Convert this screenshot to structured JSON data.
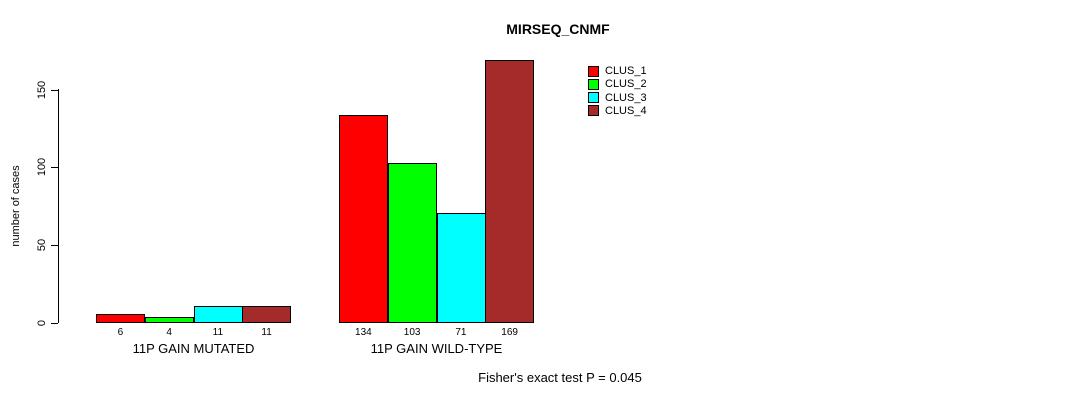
{
  "chart_data": {
    "type": "bar",
    "title": "MIRSEQ_CNMF",
    "ylabel": "number of cases",
    "yticks": [
      0,
      50,
      100,
      150
    ],
    "ylim": [
      0,
      169
    ],
    "grid": false,
    "legend_position": "top-right",
    "categories": [
      "11P GAIN MUTATED",
      "11P GAIN WILD-TYPE"
    ],
    "series": [
      {
        "name": "CLUS_1",
        "color": "#ff0000",
        "values": [
          6,
          134
        ]
      },
      {
        "name": "CLUS_2",
        "color": "#00ff00",
        "values": [
          4,
          103
        ]
      },
      {
        "name": "CLUS_3",
        "color": "#00ffff",
        "values": [
          11,
          71
        ]
      },
      {
        "name": "CLUS_4",
        "color": "#a52a2a",
        "values": [
          11,
          169
        ]
      }
    ],
    "bar_labels": [
      [
        "6",
        "4",
        "11",
        "11"
      ],
      [
        "134",
        "103",
        "71",
        "169"
      ]
    ],
    "footnote": "Fisher's exact test P = 0.045"
  }
}
